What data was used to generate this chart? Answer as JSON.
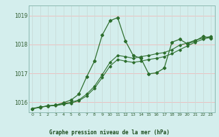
{
  "title": "Graphe pression niveau de la mer (hPa)",
  "bg_color": "#d4eeed",
  "grid_color_h": "#f0b8b8",
  "grid_color_v": "#c8dcd8",
  "line_color": "#2d6e2d",
  "ylim": [
    1015.65,
    1019.35
  ],
  "xlim": [
    -0.5,
    23.5
  ],
  "yticks": [
    1016,
    1017,
    1018,
    1019
  ],
  "xticks": [
    0,
    1,
    2,
    3,
    4,
    5,
    6,
    7,
    8,
    9,
    10,
    11,
    12,
    13,
    14,
    15,
    16,
    17,
    18,
    19,
    20,
    21,
    22,
    23
  ],
  "series": [
    [
      1015.78,
      1015.82,
      1015.88,
      1015.88,
      1015.93,
      1015.97,
      1016.05,
      1016.22,
      1016.48,
      1016.85,
      1017.25,
      1017.48,
      1017.42,
      1017.38,
      1017.42,
      1017.48,
      1017.52,
      1017.58,
      1017.68,
      1017.82,
      1017.95,
      1018.08,
      1018.18,
      1018.25
    ],
    [
      1015.78,
      1015.82,
      1015.88,
      1015.9,
      1015.95,
      1016.0,
      1016.08,
      1016.28,
      1016.55,
      1016.95,
      1017.38,
      1017.62,
      1017.58,
      1017.52,
      1017.58,
      1017.62,
      1017.68,
      1017.72,
      1017.82,
      1017.98,
      1018.05,
      1018.15,
      1018.22,
      1018.28
    ],
    [
      1015.78,
      1015.84,
      1015.86,
      1015.9,
      1015.98,
      1016.08,
      1016.28,
      1016.88,
      1017.42,
      1018.32,
      1018.82,
      1018.93,
      1018.12,
      1017.62,
      1017.52,
      1016.98,
      1017.02,
      1017.18,
      1018.08,
      1018.18,
      1018.02,
      1018.12,
      1018.28,
      1018.22
    ]
  ]
}
